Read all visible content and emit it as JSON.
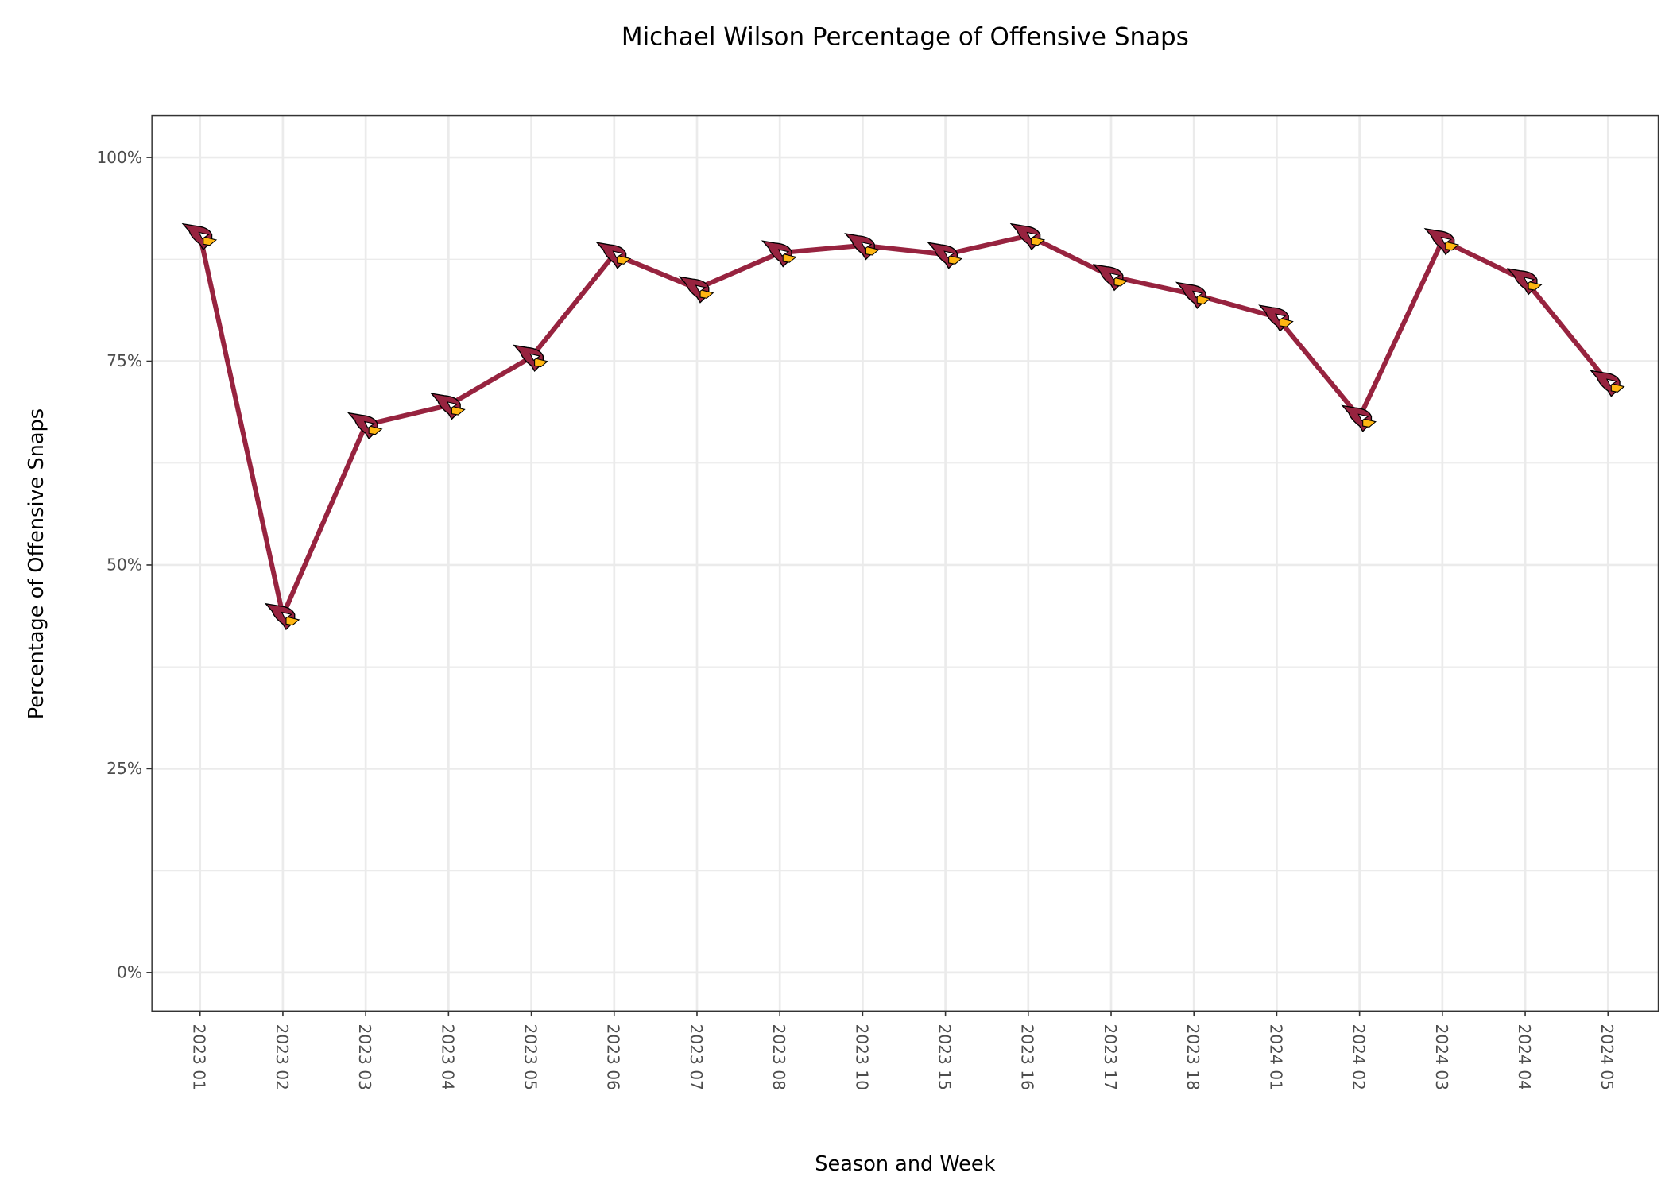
{
  "chart_data": {
    "type": "line",
    "title": "Michael Wilson Percentage of Offensive Snaps",
    "xlabel": "Season and Week",
    "ylabel": "Percentage of Offensive Snaps",
    "categories": [
      "2023 01",
      "2023 02",
      "2023 03",
      "2023 04",
      "2023 05",
      "2023 06",
      "2023 07",
      "2023 08",
      "2023 10",
      "2023 15",
      "2023 16",
      "2023 17",
      "2023 18",
      "2024 01",
      "2024 02",
      "2024 03",
      "2024 04",
      "2024 05"
    ],
    "series": [
      {
        "name": "Michael Wilson",
        "values": [
          90.4,
          43.8,
          67.2,
          69.6,
          75.5,
          88.1,
          83.9,
          88.3,
          89.2,
          88.1,
          90.4,
          85.4,
          83.2,
          80.4,
          68.1,
          89.8,
          84.9,
          72.4
        ]
      }
    ],
    "ylim": [
      -5,
      105
    ],
    "yticks": [
      0,
      25,
      50,
      75,
      100
    ],
    "ytick_labels": [
      "0%",
      "25%",
      "50%",
      "75%",
      "100%"
    ],
    "grid": true,
    "line_color": "#97233F",
    "marker": "cardinals-logo"
  }
}
